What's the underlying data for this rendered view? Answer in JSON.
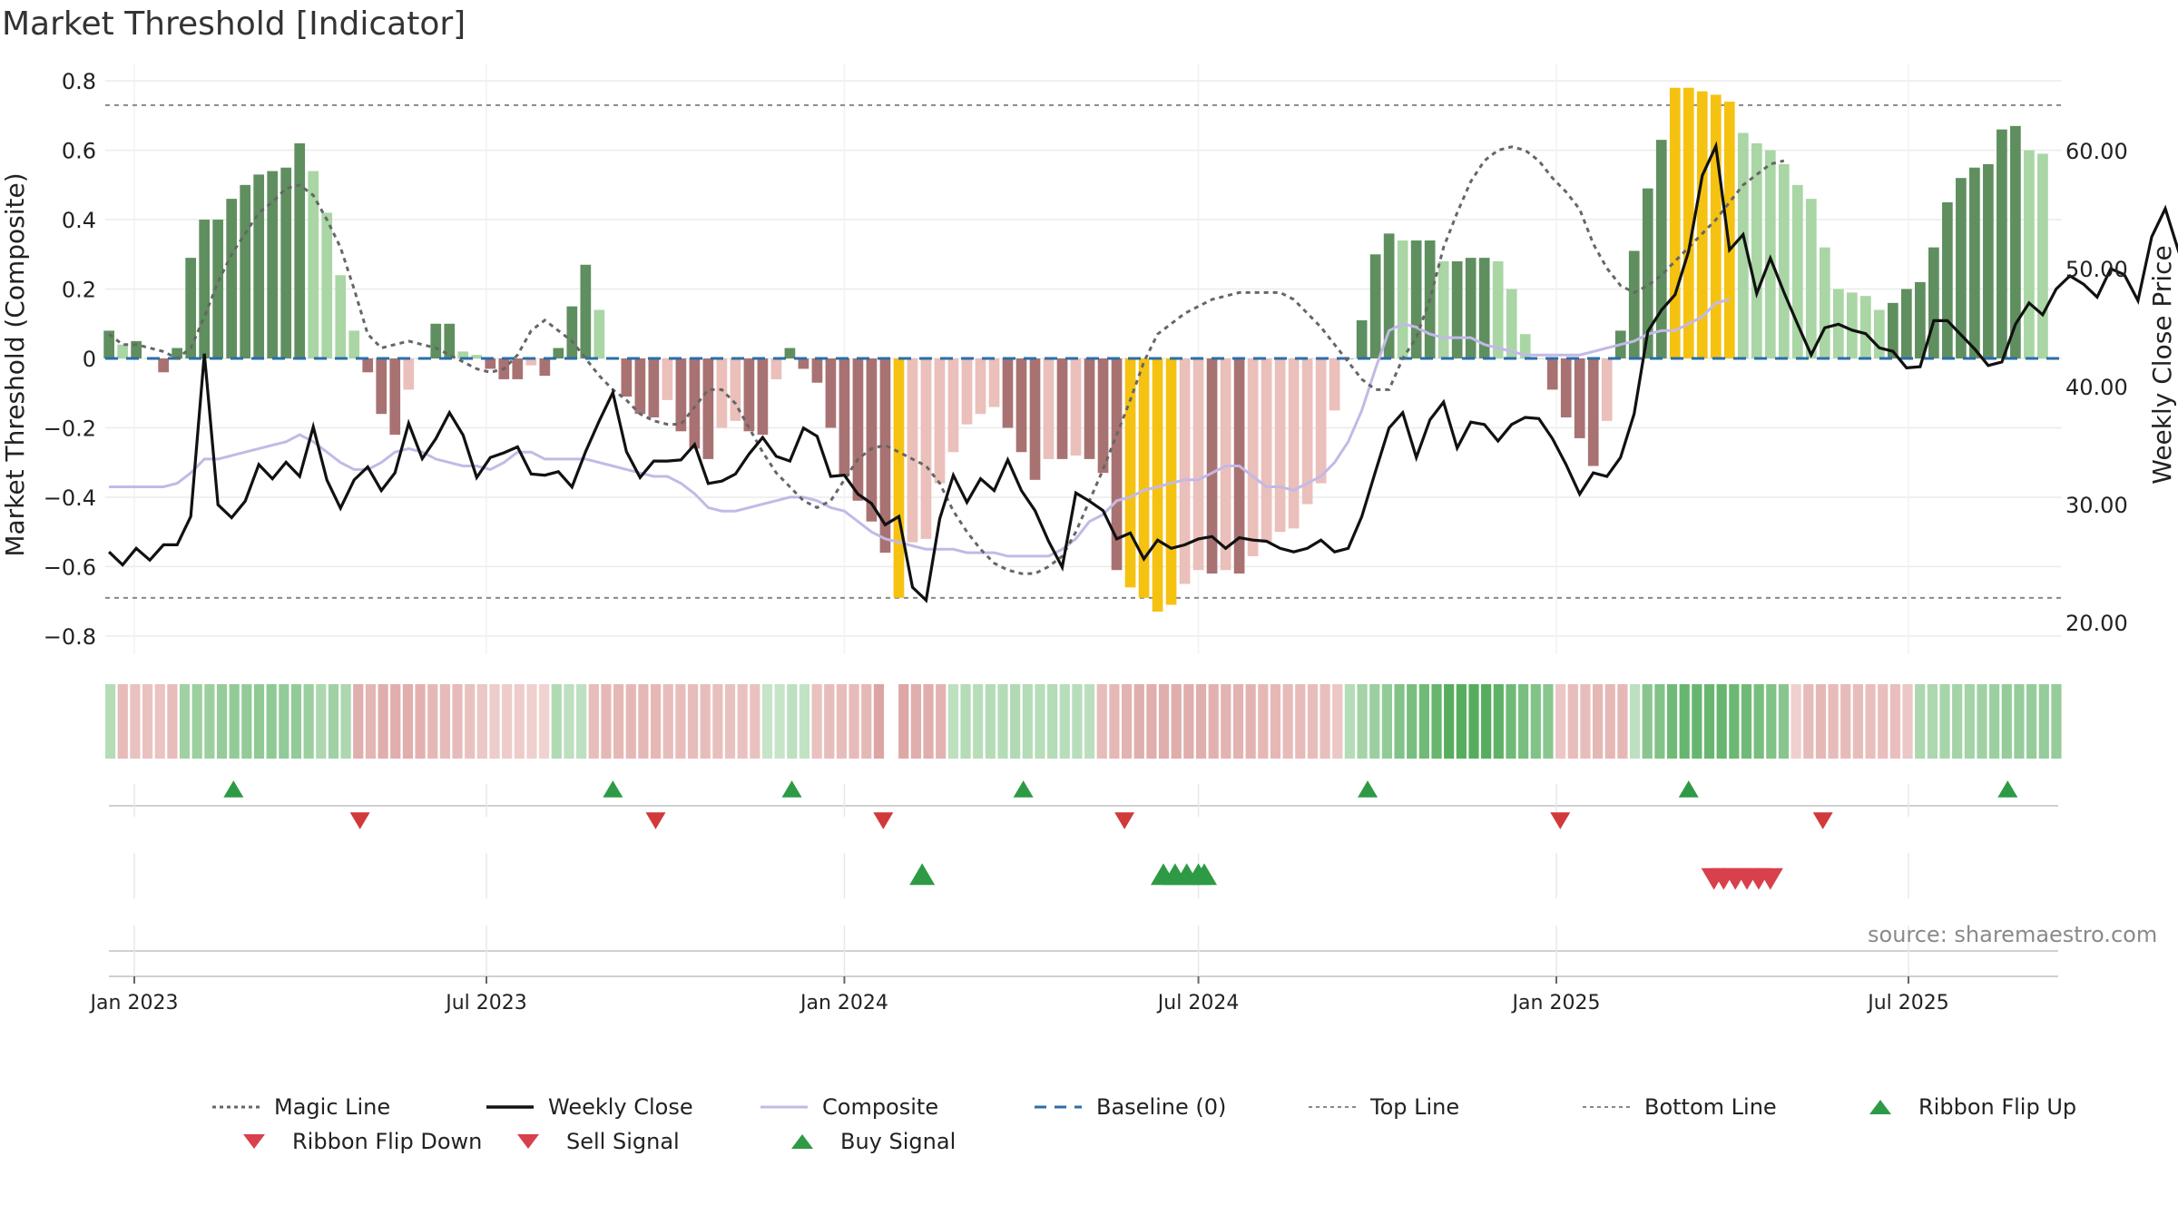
{
  "title": "Market Threshold [Indicator]",
  "source": "source: sharemaestro.com",
  "colors": {
    "bar_green_dark": "#5f8f5f",
    "bar_green_light": "#a9d6a4",
    "bar_red_dark": "#a97272",
    "bar_red_light": "#ebbfba",
    "bar_extreme": "#f5c211",
    "magic": "#666666",
    "close": "#111111",
    "composite": "#c3b9e6",
    "baseline": "#2b6ea8",
    "threshold": "#888888",
    "buy": "#2e9a45",
    "sell": "#d8404c"
  },
  "chart_data": {
    "type": "bar",
    "title": "Market Threshold [Indicator]",
    "ylabel": "Market Threshold (Composite)",
    "y2label": "Weekly Close Price",
    "ylim": [
      -0.85,
      0.85
    ],
    "y2lim": [
      17.4,
      67.4
    ],
    "yticks": [
      "0.8",
      "0.6",
      "0.4",
      "0.2",
      "0",
      "−0.2",
      "−0.4",
      "−0.6",
      "−0.8"
    ],
    "y2ticks": [
      "60.00",
      "50.00",
      "40.00",
      "30.00",
      "20.00"
    ],
    "x_start": "2022-12-19",
    "xticks": [
      {
        "label": "Jan 2023",
        "date": "2023-01-01"
      },
      {
        "label": "Jul 2023",
        "date": "2023-07-01"
      },
      {
        "label": "Jan 2024",
        "date": "2024-01-01"
      },
      {
        "label": "Jul 2024",
        "date": "2024-07-01"
      },
      {
        "label": "Jan 2025",
        "date": "2025-01-01"
      },
      {
        "label": "Jul 2025",
        "date": "2025-07-01"
      }
    ],
    "top_line": 0.73,
    "bottom_line": -0.69,
    "bars": [
      0.08,
      0.04,
      0.05,
      0.0,
      -0.04,
      0.03,
      0.29,
      0.4,
      0.4,
      0.46,
      0.5,
      0.53,
      0.54,
      0.55,
      0.62,
      0.54,
      0.42,
      0.24,
      0.08,
      -0.04,
      -0.16,
      -0.22,
      -0.09,
      0.0,
      0.1,
      0.1,
      0.02,
      0.01,
      -0.03,
      -0.06,
      -0.06,
      -0.02,
      -0.05,
      0.03,
      0.15,
      0.27,
      0.14,
      0.0,
      -0.11,
      -0.16,
      -0.17,
      -0.12,
      -0.21,
      -0.26,
      -0.29,
      -0.2,
      -0.18,
      -0.21,
      -0.22,
      -0.06,
      0.03,
      -0.03,
      -0.07,
      -0.2,
      -0.34,
      -0.41,
      -0.47,
      -0.56,
      -0.69,
      -0.53,
      -0.52,
      -0.36,
      -0.27,
      -0.19,
      -0.16,
      -0.14,
      -0.2,
      -0.27,
      -0.35,
      -0.29,
      -0.29,
      -0.28,
      -0.29,
      -0.33,
      -0.61,
      -0.66,
      -0.69,
      -0.73,
      -0.71,
      -0.65,
      -0.61,
      -0.62,
      -0.61,
      -0.62,
      -0.57,
      -0.53,
      -0.5,
      -0.49,
      -0.42,
      -0.36,
      -0.15,
      0.0,
      0.11,
      0.3,
      0.36,
      0.34,
      0.34,
      0.34,
      0.28,
      0.28,
      0.29,
      0.29,
      0.28,
      0.2,
      0.07,
      0.0,
      -0.09,
      -0.17,
      -0.23,
      -0.31,
      -0.18,
      0.08,
      0.31,
      0.49,
      0.63,
      0.78,
      0.78,
      0.77,
      0.76,
      0.74,
      0.65,
      0.62,
      0.6,
      0.56,
      0.5,
      0.46,
      0.32,
      0.2,
      0.19,
      0.18,
      0.14,
      0.16,
      0.2,
      0.22,
      0.32,
      0.45,
      0.52,
      0.55,
      0.56,
      0.66,
      0.67,
      0.6,
      0.59
    ],
    "weekly_close": [
      26.0,
      24.9,
      26.3,
      25.3,
      26.6,
      26.6,
      29.0,
      42.8,
      30.0,
      28.9,
      30.3,
      33.4,
      32.2,
      33.6,
      32.4,
      36.6,
      32.1,
      29.7,
      32.1,
      33.2,
      31.2,
      32.7,
      36.9,
      33.9,
      35.6,
      37.8,
      35.9,
      32.3,
      34.0,
      34.4,
      34.9,
      32.6,
      32.5,
      32.8,
      31.5,
      34.5,
      37.1,
      39.5,
      34.5,
      32.3,
      33.7,
      33.7,
      33.8,
      35.1,
      31.8,
      32.0,
      32.6,
      34.3,
      35.7,
      34.1,
      33.7,
      36.5,
      35.8,
      32.4,
      32.5,
      30.9,
      30.1,
      28.3,
      29.0,
      23.0,
      21.9,
      28.8,
      32.5,
      30.2,
      32.2,
      31.2,
      33.8,
      31.2,
      29.5,
      26.9,
      24.7,
      31.0,
      30.3,
      29.5,
      27.1,
      27.6,
      25.4,
      27.0,
      26.3,
      26.6,
      27.1,
      27.3,
      26.3,
      27.2,
      27.0,
      26.9,
      26.3,
      26.0,
      26.3,
      27.0,
      26.0,
      26.3,
      29.0,
      32.8,
      36.5,
      37.8,
      34.0,
      37.2,
      38.7,
      34.8,
      37.0,
      36.8,
      35.4,
      36.8,
      37.4,
      37.3,
      35.6,
      33.4,
      30.9,
      32.7,
      32.4,
      34.0,
      37.7,
      44.7,
      46.5,
      47.8,
      51.5,
      57.9,
      60.4,
      51.6,
      52.9,
      47.9,
      50.9,
      48.0,
      45.3,
      42.7,
      45.0,
      45.3,
      44.8,
      44.5,
      43.3,
      43.0,
      41.6,
      41.7,
      45.6,
      45.6,
      44.4,
      43.2,
      41.8,
      42.1,
      45.3,
      47.1,
      46.1,
      48.3,
      49.4,
      48.7,
      47.6,
      50.0,
      49.5,
      47.3,
      52.7,
      55.1,
      51.4,
      49.5,
      50.6
    ],
    "magic_line": [
      0.07,
      0.04,
      0.04,
      0.03,
      0.02,
      0.0,
      0.03,
      0.12,
      0.22,
      0.3,
      0.36,
      0.42,
      0.45,
      0.49,
      0.5,
      0.47,
      0.4,
      0.32,
      0.2,
      0.07,
      0.03,
      0.04,
      0.05,
      0.04,
      0.03,
      0.01,
      -0.01,
      -0.03,
      -0.04,
      -0.03,
      0.01,
      0.08,
      0.11,
      0.08,
      0.05,
      0.0,
      -0.05,
      -0.09,
      -0.12,
      -0.16,
      -0.18,
      -0.19,
      -0.19,
      -0.14,
      -0.09,
      -0.09,
      -0.13,
      -0.2,
      -0.27,
      -0.33,
      -0.37,
      -0.41,
      -0.43,
      -0.41,
      -0.35,
      -0.29,
      -0.26,
      -0.25,
      -0.27,
      -0.29,
      -0.31,
      -0.36,
      -0.44,
      -0.5,
      -0.55,
      -0.59,
      -0.61,
      -0.62,
      -0.62,
      -0.6,
      -0.57,
      -0.5,
      -0.41,
      -0.32,
      -0.22,
      -0.12,
      -0.01,
      0.07,
      0.1,
      0.13,
      0.15,
      0.17,
      0.18,
      0.19,
      0.19,
      0.19,
      0.19,
      0.17,
      0.13,
      0.09,
      0.04,
      -0.01,
      -0.06,
      -0.09,
      -0.09,
      0.0,
      0.06,
      0.17,
      0.32,
      0.42,
      0.51,
      0.57,
      0.6,
      0.61,
      0.6,
      0.57,
      0.52,
      0.48,
      0.43,
      0.33,
      0.26,
      0.21,
      0.19,
      0.21,
      0.24,
      0.28,
      0.32,
      0.36,
      0.4,
      0.45,
      0.5,
      0.53,
      0.56,
      0.57
    ],
    "composite": [
      -0.37,
      -0.37,
      -0.37,
      -0.37,
      -0.37,
      -0.36,
      -0.33,
      -0.29,
      -0.29,
      -0.28,
      -0.27,
      -0.26,
      -0.25,
      -0.24,
      -0.22,
      -0.24,
      -0.27,
      -0.3,
      -0.32,
      -0.32,
      -0.3,
      -0.27,
      -0.26,
      -0.27,
      -0.29,
      -0.3,
      -0.31,
      -0.31,
      -0.32,
      -0.3,
      -0.27,
      -0.27,
      -0.29,
      -0.29,
      -0.29,
      -0.29,
      -0.3,
      -0.31,
      -0.32,
      -0.33,
      -0.34,
      -0.34,
      -0.36,
      -0.39,
      -0.43,
      -0.44,
      -0.44,
      -0.43,
      -0.42,
      -0.41,
      -0.4,
      -0.4,
      -0.41,
      -0.43,
      -0.44,
      -0.47,
      -0.5,
      -0.52,
      -0.53,
      -0.54,
      -0.55,
      -0.55,
      -0.55,
      -0.56,
      -0.56,
      -0.56,
      -0.57,
      -0.57,
      -0.57,
      -0.57,
      -0.55,
      -0.52,
      -0.47,
      -0.45,
      -0.41,
      -0.4,
      -0.38,
      -0.37,
      -0.36,
      -0.35,
      -0.35,
      -0.33,
      -0.31,
      -0.31,
      -0.34,
      -0.37,
      -0.37,
      -0.38,
      -0.36,
      -0.34,
      -0.3,
      -0.24,
      -0.15,
      -0.03,
      0.08,
      0.1,
      0.09,
      0.07,
      0.06,
      0.06,
      0.06,
      0.04,
      0.03,
      0.02,
      0.01,
      0.01,
      0.01,
      0.01,
      0.01,
      0.02,
      0.03,
      0.04,
      0.05,
      0.07,
      0.08,
      0.08,
      0.1,
      0.12,
      0.16,
      0.17
    ],
    "ribbon": [
      0.3,
      -0.42,
      -0.35,
      -0.35,
      -0.33,
      -0.4,
      0.42,
      0.45,
      0.45,
      0.48,
      0.5,
      0.5,
      0.52,
      0.52,
      0.5,
      0.5,
      0.45,
      0.35,
      0.42,
      0.35,
      -0.55,
      -0.48,
      -0.55,
      -0.55,
      -0.55,
      -0.52,
      -0.45,
      -0.42,
      -0.42,
      -0.35,
      -0.3,
      -0.25,
      -0.25,
      -0.25,
      -0.2,
      -0.18,
      0.32,
      0.25,
      0.25,
      -0.4,
      -0.45,
      -0.45,
      -0.45,
      -0.45,
      -0.45,
      -0.4,
      -0.4,
      -0.4,
      -0.4,
      -0.38,
      -0.35,
      -0.35,
      -0.35,
      0.2,
      0.2,
      0.25,
      0.22,
      -0.35,
      -0.4,
      -0.4,
      -0.42,
      -0.45,
      -0.65,
      0.0,
      -0.62,
      -0.55,
      -0.55,
      -0.5,
      0.25,
      0.3,
      0.28,
      0.3,
      0.3,
      0.32,
      0.3,
      0.28,
      0.3,
      0.28,
      0.28,
      0.26,
      -0.4,
      -0.45,
      -0.5,
      -0.55,
      -0.55,
      -0.55,
      -0.55,
      -0.55,
      -0.55,
      -0.52,
      -0.5,
      -0.5,
      -0.5,
      -0.45,
      -0.45,
      -0.42,
      -0.42,
      -0.4,
      -0.38,
      -0.3,
      0.3,
      0.4,
      0.45,
      0.5,
      0.6,
      0.65,
      0.7,
      0.75,
      0.85,
      0.85,
      0.85,
      0.85,
      0.8,
      0.7,
      0.65,
      0.6,
      0.55,
      -0.3,
      -0.4,
      -0.4,
      -0.45,
      -0.45,
      -0.45,
      0.25,
      0.55,
      0.6,
      0.7,
      0.75,
      0.75,
      0.75,
      0.75,
      0.72,
      0.7,
      0.65,
      0.6,
      0.55,
      -0.2,
      -0.42,
      -0.45,
      -0.42,
      -0.42,
      -0.4,
      -0.38,
      -0.38,
      -0.38,
      -0.3,
      0.35,
      0.35,
      0.38,
      0.4,
      0.4,
      0.42,
      0.45,
      0.48,
      0.48,
      0.48,
      0.48,
      0.48
    ],
    "ribbon_flip_up": [
      "2023-02-21",
      "2023-09-04",
      "2023-12-05",
      "2024-04-02",
      "2024-09-26",
      "2025-03-10",
      "2025-08-21"
    ],
    "ribbon_flip_down": [
      "2023-04-27",
      "2023-09-26",
      "2024-01-21",
      "2024-05-24",
      "2025-01-03",
      "2025-05-18"
    ],
    "buy_signal": [
      "2024-02-10",
      "2024-06-13",
      "2024-06-19",
      "2024-06-25",
      "2024-07-01",
      "2024-07-04"
    ],
    "sell_signal": [
      "2025-03-23",
      "2025-03-28",
      "2025-04-03",
      "2025-04-09",
      "2025-04-15",
      "2025-04-21"
    ],
    "legend": [
      {
        "label": "Magic Line",
        "kind": "dotted",
        "color": "#666666"
      },
      {
        "label": "Weekly Close",
        "kind": "solid",
        "color": "#111111"
      },
      {
        "label": "Composite",
        "kind": "solid-light",
        "color": "#c3b9e6"
      },
      {
        "label": "Baseline (0)",
        "kind": "dashed",
        "color": "#2b6ea8"
      },
      {
        "label": "Top Line",
        "kind": "dotted-thin",
        "color": "#888888"
      },
      {
        "label": "Bottom Line",
        "kind": "dotted-thin",
        "color": "#888888"
      },
      {
        "label": "Ribbon Flip Up",
        "kind": "tri-up",
        "color": "#2e9a45"
      },
      {
        "label": "Ribbon Flip Down",
        "kind": "tri-down",
        "color": "#d8404c"
      },
      {
        "label": "Sell Signal",
        "kind": "tri-down",
        "color": "#d8404c"
      },
      {
        "label": "Buy Signal",
        "kind": "tri-up",
        "color": "#2e9a45"
      }
    ]
  }
}
